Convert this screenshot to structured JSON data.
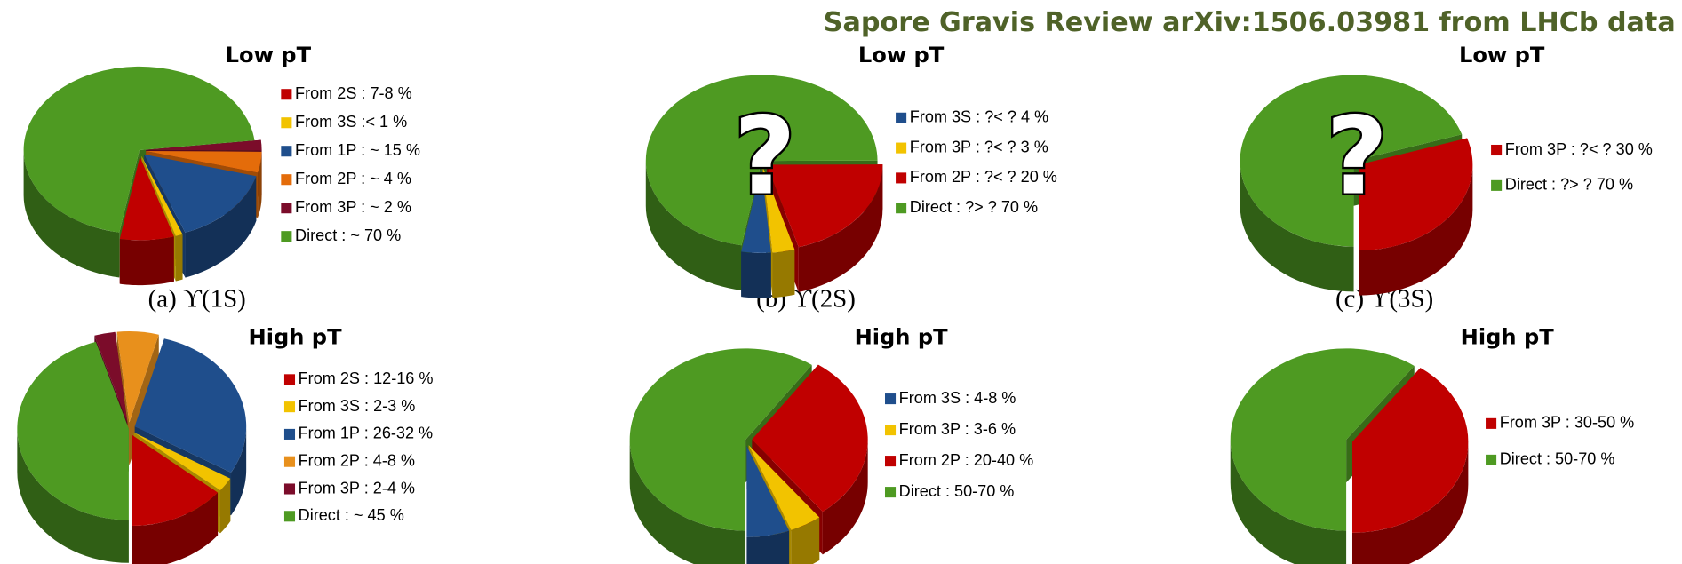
{
  "header": {
    "title": "Sapore Gravis Review arXiv:1506.03981 from LHCb data"
  },
  "captions": [
    "(a)  ϒ(1S)",
    "(b)  ϒ(2S)",
    "(c)  ϒ(3S)"
  ],
  "chart_data": [
    {
      "type": "pie",
      "title": "Low pT",
      "series": [
        {
          "name": "From 2S : 7-8 %",
          "color": "#c00000",
          "value": 7.5
        },
        {
          "name": "From 3S :< 1 %",
          "color": "#f2c300",
          "value": 1
        },
        {
          "name": "From 1P : ~ 15 %",
          "color": "#1f4e8c",
          "value": 15
        },
        {
          "name": "From 2P : ~ 4 %",
          "color": "#e46c0a",
          "value": 4
        },
        {
          "name": "From 3P : ~ 2 %",
          "color": "#7b0c2a",
          "value": 2
        },
        {
          "name": "Direct :  ~ 70 %",
          "color": "#4e9a22",
          "value": 70
        }
      ]
    },
    {
      "type": "pie",
      "title": "Low pT",
      "annotation": "?",
      "series": [
        {
          "name": "From 3S : ?< ? 4  %",
          "color": "#1f4e8c",
          "value": 4
        },
        {
          "name": "From 3P : ?< ? 3 %",
          "color": "#f2c300",
          "value": 3
        },
        {
          "name": "From 2P : ?< ? 20 %",
          "color": "#c00000",
          "value": 20
        },
        {
          "name": "Direct : ?> ? 70 %",
          "color": "#4e9a22",
          "value": 70
        }
      ]
    },
    {
      "type": "pie",
      "title": "Low pT",
      "annotation": "?",
      "series": [
        {
          "name": "From 3P : ?< ? 30 %",
          "color": "#c00000",
          "value": 30
        },
        {
          "name": "Direct : ?> ? 70 %",
          "color": "#4e9a22",
          "value": 70
        }
      ]
    },
    {
      "type": "pie",
      "title": "High pT",
      "series": [
        {
          "name": "From 2S : 12-16 %",
          "color": "#c00000",
          "value": 14
        },
        {
          "name": "From 3S : 2-3 %",
          "color": "#f2c300",
          "value": 2.5
        },
        {
          "name": "From 1P : 26-32 %",
          "color": "#1f4e8c",
          "value": 29
        },
        {
          "name": "From 2P : 4-8 %",
          "color": "#e8901c",
          "value": 6
        },
        {
          "name": "From 3P : 2-4 %",
          "color": "#7b0c2a",
          "value": 3
        },
        {
          "name": "Direct :  ~ 45 %",
          "color": "#4e9a22",
          "value": 45
        }
      ]
    },
    {
      "type": "pie",
      "title": "High pT",
      "series": [
        {
          "name": "From 3S : 4-8  %",
          "color": "#1f4e8c",
          "value": 6
        },
        {
          "name": "From 3P :  3-6 %",
          "color": "#f2c300",
          "value": 4.5
        },
        {
          "name": "From 2P : 20-40 %",
          "color": "#c00000",
          "value": 30
        },
        {
          "name": "Direct :   50-70 %",
          "color": "#4e9a22",
          "value": 60
        }
      ]
    },
    {
      "type": "pie",
      "title": "High pT",
      "series": [
        {
          "name": "From 3P :  30-50 %",
          "color": "#c00000",
          "value": 40
        },
        {
          "name": "Direct :   50-70 %",
          "color": "#4e9a22",
          "value": 60
        }
      ]
    }
  ]
}
